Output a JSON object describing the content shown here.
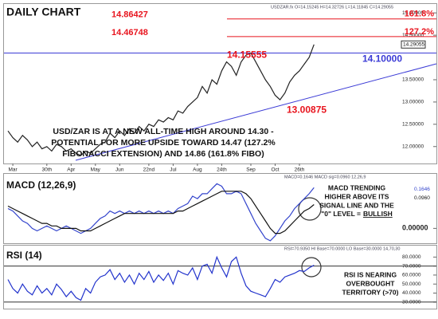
{
  "chart_data": [
    {
      "type": "line",
      "title": "DAILY CHART",
      "header": "USDZAR.fx O=14.15245 H=14.32726 L=14.11845 C=14.29055",
      "categories": [
        null,
        "Mar",
        null,
        null,
        null,
        null,
        null,
        null,
        "30th",
        null,
        null,
        null,
        null,
        "Apr",
        null,
        null,
        null,
        null,
        "May",
        null,
        null,
        null,
        null,
        "Jun",
        null,
        null,
        null,
        null,
        null,
        "22nd",
        null,
        null,
        null,
        null,
        "Jul",
        null,
        null,
        null,
        null,
        "Aug",
        null,
        null,
        null,
        null,
        "24th",
        null,
        null,
        null,
        null,
        null,
        "Sep",
        null,
        null,
        null,
        null,
        "Oct",
        null,
        null,
        null,
        null,
        "26th",
        null,
        null,
        null
      ],
      "series": [
        {
          "name": "USDZAR",
          "color": "#222222",
          "values": [
            12.35,
            12.2,
            12.1,
            12.25,
            12.15,
            12.0,
            12.1,
            11.95,
            12.0,
            11.9,
            12.05,
            12.0,
            11.9,
            11.95,
            11.85,
            11.8,
            11.9,
            11.85,
            11.95,
            12.05,
            12.1,
            12.3,
            12.2,
            12.35,
            12.25,
            12.4,
            12.3,
            12.45,
            12.35,
            12.5,
            12.45,
            12.6,
            12.55,
            12.65,
            12.6,
            12.8,
            12.75,
            12.9,
            13.0,
            13.1,
            13.35,
            13.2,
            13.5,
            13.4,
            13.7,
            13.9,
            13.8,
            13.6,
            13.9,
            14.05,
            14.1,
            13.9,
            13.7,
            13.5,
            13.35,
            13.15,
            13.05,
            13.2,
            13.45,
            13.6,
            13.7,
            13.85,
            14.0,
            14.29055
          ]
        }
      ],
      "ylim": [
        11.62,
        15.2
      ],
      "yticks": [
        {
          "value": 15,
          "label": "15.00000"
        },
        {
          "value": 14.5,
          "label": "14.50000"
        },
        {
          "value": 13.5,
          "label": "13.50000"
        },
        {
          "value": 13,
          "label": "13.00000"
        },
        {
          "value": 12.5,
          "label": "12.50000"
        },
        {
          "value": 12,
          "label": "12.00000"
        }
      ],
      "last_price": 14.29055,
      "levels": [
        {
          "value": 14.86427,
          "name": "161.8%",
          "color": "#e8141e"
        },
        {
          "value": 14.46748,
          "name": "127.2%",
          "color": "#e8141e"
        },
        {
          "value": 14.1,
          "label": "14.10000",
          "color": "#3b3bd6"
        }
      ],
      "point_labels": [
        14.15555,
        13.00875
      ],
      "annotation": [
        "USD/ZAR IS AT A NEW ALL-TIME HIGH AROUND 14.30 -",
        "POTENTIAL FOR MORE UPSIDE TOWARD 14.47 (127.2%",
        "FIBONACCI EXTENSION) AND 14.86 (161.8% FIBO)"
      ]
    },
    {
      "type": "line",
      "title": "MACD (12,26,9)",
      "header": "MACD=0.1646 MACD sig=0.0960 12,26,9",
      "series": [
        {
          "name": "MACD",
          "color": "#3344cc",
          "end_label": "0.1646",
          "values": [
            0.08,
            0.07,
            0.05,
            0.03,
            0.02,
            0.0,
            -0.01,
            0.0,
            0.01,
            0.0,
            -0.01,
            0.0,
            0.01,
            0.0,
            -0.01,
            -0.02,
            -0.01,
            0.0,
            0.02,
            0.04,
            0.05,
            0.07,
            0.06,
            0.07,
            0.06,
            0.07,
            0.06,
            0.07,
            0.06,
            0.07,
            0.06,
            0.07,
            0.06,
            0.07,
            0.06,
            0.08,
            0.09,
            0.1,
            0.13,
            0.12,
            0.14,
            0.14,
            0.16,
            0.18,
            0.17,
            0.14,
            0.14,
            0.15,
            0.14,
            0.1,
            0.06,
            0.02,
            -0.01,
            -0.04,
            -0.05,
            -0.03,
            0.0,
            0.03,
            0.05,
            0.08,
            0.1,
            0.12,
            0.14,
            0.1646
          ]
        },
        {
          "name": "MACD sig",
          "color": "#111111",
          "end_label": "0.0960",
          "values": [
            0.09,
            0.08,
            0.07,
            0.06,
            0.05,
            0.04,
            0.03,
            0.02,
            0.02,
            0.01,
            0.01,
            0.0,
            0.0,
            0.0,
            0.0,
            -0.01,
            -0.01,
            -0.01,
            0.0,
            0.01,
            0.02,
            0.03,
            0.04,
            0.05,
            0.06,
            0.06,
            0.06,
            0.06,
            0.06,
            0.06,
            0.06,
            0.06,
            0.06,
            0.06,
            0.06,
            0.07,
            0.07,
            0.08,
            0.09,
            0.1,
            0.11,
            0.12,
            0.13,
            0.14,
            0.15,
            0.15,
            0.15,
            0.15,
            0.15,
            0.14,
            0.12,
            0.09,
            0.06,
            0.03,
            0.0,
            -0.02,
            -0.02,
            -0.01,
            0.01,
            0.03,
            0.05,
            0.07,
            0.08,
            0.096
          ]
        }
      ],
      "ylim": [
        -0.06,
        0.22
      ],
      "yticks": [
        {
          "value": 0,
          "label": "0.00000"
        }
      ],
      "annotation": [
        "MACD TRENDING",
        "HIGHER ABOVE ITS",
        "SIGNAL LINE AND THE",
        [
          "\"0\" LEVEL =",
          "BULLISH"
        ]
      ]
    },
    {
      "type": "line",
      "title": "RSI (14)",
      "header": "RSI=70.9350 HI Base=70.0000 LO Base=30.0000 14,70,30",
      "series": [
        {
          "name": "RSI",
          "color": "#2233cc",
          "values": [
            55,
            45,
            40,
            50,
            42,
            38,
            48,
            40,
            45,
            38,
            50,
            44,
            36,
            42,
            35,
            32,
            45,
            40,
            52,
            58,
            60,
            66,
            55,
            62,
            52,
            60,
            50,
            62,
            55,
            64,
            52,
            60,
            54,
            62,
            50,
            65,
            62,
            60,
            68,
            55,
            70,
            72,
            62,
            80,
            68,
            58,
            75,
            80,
            62,
            48,
            42,
            40,
            38,
            36,
            45,
            55,
            52,
            58,
            60,
            62,
            65,
            64,
            68,
            71
          ]
        }
      ],
      "ylim": [
        22.7,
        92.7
      ],
      "yticks": [
        {
          "value": 80,
          "label": "80.0000"
        },
        {
          "value": 70,
          "label": "70.0000"
        },
        {
          "value": 60,
          "label": "60.0000"
        },
        {
          "value": 50,
          "label": "50.0000"
        },
        {
          "value": 40,
          "label": "40.0000"
        },
        {
          "value": 30,
          "label": "30.0000"
        }
      ],
      "levels": [
        {
          "value": 70,
          "color": "#333333"
        },
        {
          "value": 30,
          "color": "#333333"
        }
      ],
      "annotation": [
        "RSI IS NEARING",
        "OVERBOUGHT",
        "TERRITORY (>70)"
      ]
    }
  ]
}
